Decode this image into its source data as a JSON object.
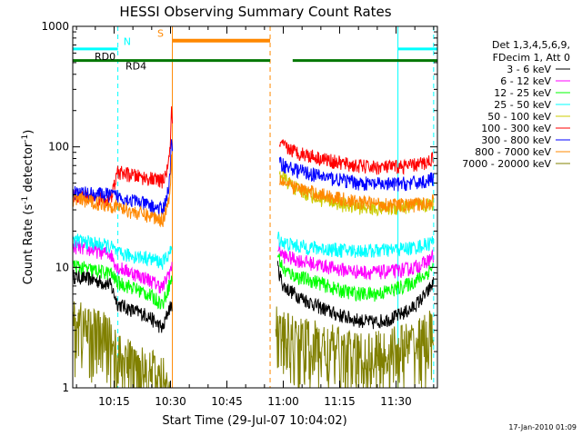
{
  "chart_data": {
    "type": "line",
    "title": "HESSI Observing Summary Count Rates",
    "xlabel": "Start Time (29-Jul-07 10:04:02)",
    "ylabel_main": "Count Rate (s",
    "ylabel_sup1": "-1",
    "ylabel_mid": " detector",
    "ylabel_sup2": "-1",
    "ylabel_end": ")",
    "y_scale": "log",
    "ylim": [
      1,
      1000
    ],
    "xlim_minutes": [
      0,
      97
    ],
    "x_ticks": [
      {
        "t": 11,
        "label": "10:15"
      },
      {
        "t": 26,
        "label": "10:30"
      },
      {
        "t": 41,
        "label": "10:45"
      },
      {
        "t": 56,
        "label": "11:00"
      },
      {
        "t": 71,
        "label": "11:15"
      },
      {
        "t": 86,
        "label": "11:30"
      }
    ],
    "y_ticks": [
      {
        "v": 1,
        "label": "1"
      },
      {
        "v": 10,
        "label": "10"
      },
      {
        "v": 100,
        "label": "100"
      },
      {
        "v": 1000,
        "label": "1000"
      }
    ],
    "legend": {
      "position": "top-right",
      "header1": "Det 1,3,4,5,6,9,",
      "header2": "FDecim 1, Att 0"
    },
    "series": [
      {
        "name": "3 - 6 keV",
        "color": "#000000",
        "seg1": [
          [
            0,
            8.5
          ],
          [
            5,
            8
          ],
          [
            10,
            7.2
          ],
          [
            12,
            5
          ],
          [
            16,
            4.4
          ],
          [
            20,
            4
          ],
          [
            22,
            3.5
          ],
          [
            24,
            3.1
          ],
          [
            25.5,
            4.5
          ],
          [
            26.5,
            5
          ]
        ],
        "seg2": [
          [
            54.5,
            10
          ],
          [
            56,
            7
          ],
          [
            60,
            5.8
          ],
          [
            65,
            4.8
          ],
          [
            70,
            4.1
          ],
          [
            75,
            3.7
          ],
          [
            80,
            3.5
          ],
          [
            85,
            3.8
          ],
          [
            90,
            4.5
          ],
          [
            94,
            6
          ],
          [
            96,
            7.5
          ]
        ]
      },
      {
        "name": "6 - 12 keV",
        "color": "#ff00ff",
        "seg1": [
          [
            0,
            15
          ],
          [
            5,
            14
          ],
          [
            10,
            13
          ],
          [
            12,
            10
          ],
          [
            16,
            9
          ],
          [
            20,
            8
          ],
          [
            24,
            6.8
          ],
          [
            25.5,
            9
          ],
          [
            26.5,
            10
          ]
        ],
        "seg2": [
          [
            54.5,
            15
          ],
          [
            56,
            12.5
          ],
          [
            60,
            11.5
          ],
          [
            65,
            10.6
          ],
          [
            70,
            9.8
          ],
          [
            75,
            9.3
          ],
          [
            80,
            9.1
          ],
          [
            85,
            9.3
          ],
          [
            90,
            9.8
          ],
          [
            94,
            11
          ],
          [
            96,
            12.5
          ]
        ]
      },
      {
        "name": "12 - 25 keV",
        "color": "#00ff00",
        "seg1": [
          [
            0,
            10.5
          ],
          [
            5,
            9.5
          ],
          [
            10,
            9
          ],
          [
            12,
            7.5
          ],
          [
            16,
            6.8
          ],
          [
            20,
            6
          ],
          [
            24,
            5
          ],
          [
            25.5,
            7
          ],
          [
            26.5,
            8
          ]
        ],
        "seg2": [
          [
            54.5,
            13
          ],
          [
            56,
            9.5
          ],
          [
            60,
            8.3
          ],
          [
            65,
            7.6
          ],
          [
            70,
            6.6
          ],
          [
            75,
            6.1
          ],
          [
            80,
            6
          ],
          [
            85,
            6.5
          ],
          [
            90,
            7.4
          ],
          [
            94,
            8.8
          ],
          [
            96,
            10.5
          ]
        ]
      },
      {
        "name": "25 - 50 keV",
        "color": "#00ffff",
        "seg1": [
          [
            0,
            17
          ],
          [
            5,
            16
          ],
          [
            10,
            15
          ],
          [
            12,
            13
          ],
          [
            16,
            12.5
          ],
          [
            20,
            12
          ],
          [
            24,
            11
          ],
          [
            25.5,
            13
          ],
          [
            26.5,
            14
          ]
        ],
        "seg2": [
          [
            54.5,
            18
          ],
          [
            56,
            16
          ],
          [
            60,
            15
          ],
          [
            65,
            14.5
          ],
          [
            70,
            14
          ],
          [
            75,
            13.8
          ],
          [
            80,
            13.8
          ],
          [
            85,
            14
          ],
          [
            90,
            14.5
          ],
          [
            94,
            15.5
          ],
          [
            96,
            16.5
          ]
        ]
      },
      {
        "name": "50 - 100 keV",
        "color": "#cccc00",
        "seg1": [],
        "seg2": [
          [
            55,
            62
          ],
          [
            57,
            52
          ],
          [
            60,
            44
          ],
          [
            63,
            40
          ],
          [
            66,
            37
          ],
          [
            70,
            34
          ],
          [
            75,
            32
          ],
          [
            80,
            31
          ],
          [
            85,
            31
          ],
          [
            90,
            32
          ],
          [
            94,
            33
          ],
          [
            96,
            34
          ]
        ]
      },
      {
        "name": "100 - 300 keV",
        "color": "#ff0000",
        "seg1": [
          [
            0,
            40
          ],
          [
            5,
            38
          ],
          [
            10,
            36
          ],
          [
            12,
            62
          ],
          [
            16,
            58
          ],
          [
            20,
            55
          ],
          [
            24,
            52
          ],
          [
            25.5,
            70
          ],
          [
            26,
            120
          ],
          [
            26.3,
            210
          ],
          [
            26.6,
            120
          ]
        ],
        "seg2": [
          [
            55,
            105
          ],
          [
            57,
            98
          ],
          [
            60,
            90
          ],
          [
            65,
            82
          ],
          [
            70,
            75
          ],
          [
            75,
            70
          ],
          [
            80,
            68
          ],
          [
            85,
            68
          ],
          [
            90,
            70
          ],
          [
            94,
            74
          ],
          [
            96,
            82
          ]
        ]
      },
      {
        "name": "300 - 800 keV",
        "color": "#0000ff",
        "seg1": [
          [
            0,
            42
          ],
          [
            5,
            41
          ],
          [
            10,
            40
          ],
          [
            12,
            39
          ],
          [
            16,
            36
          ],
          [
            20,
            33
          ],
          [
            24,
            30
          ],
          [
            25.5,
            45
          ],
          [
            26,
            70
          ],
          [
            26.3,
            120
          ],
          [
            26.6,
            75
          ]
        ],
        "seg2": [
          [
            55,
            75
          ],
          [
            57,
            68
          ],
          [
            60,
            64
          ],
          [
            65,
            58
          ],
          [
            70,
            54
          ],
          [
            75,
            51
          ],
          [
            80,
            49
          ],
          [
            85,
            49
          ],
          [
            90,
            50
          ],
          [
            94,
            52
          ],
          [
            96,
            55
          ]
        ]
      },
      {
        "name": "800 - 7000 keV",
        "color": "#ff8800",
        "seg1": [
          [
            0,
            37
          ],
          [
            5,
            35
          ],
          [
            10,
            33
          ],
          [
            12,
            32
          ],
          [
            16,
            29
          ],
          [
            20,
            27
          ],
          [
            24,
            25
          ],
          [
            25.5,
            36
          ],
          [
            26,
            50
          ],
          [
            26.3,
            85
          ],
          [
            26.6,
            55
          ]
        ],
        "seg2": [
          [
            55,
            55
          ],
          [
            57,
            49
          ],
          [
            60,
            45
          ],
          [
            65,
            41
          ],
          [
            70,
            38
          ],
          [
            75,
            35
          ],
          [
            80,
            34
          ],
          [
            85,
            33
          ],
          [
            90,
            33
          ],
          [
            94,
            34
          ],
          [
            96,
            36
          ]
        ]
      },
      {
        "name": "7000 - 20000 keV",
        "color": "#808000",
        "seg1": [
          [
            0,
            3.5
          ],
          [
            3,
            3.2
          ],
          [
            6,
            2.8
          ],
          [
            10,
            2.5
          ],
          [
            12,
            1.7
          ],
          [
            16,
            1.5
          ],
          [
            20,
            1.4
          ],
          [
            22,
            1.2
          ],
          [
            24,
            1.1
          ],
          [
            26,
            1.05
          ]
        ],
        "seg2": [
          [
            54,
            3
          ],
          [
            56,
            2.6
          ],
          [
            60,
            2.4
          ],
          [
            65,
            2.2
          ],
          [
            70,
            2
          ],
          [
            75,
            1.8
          ],
          [
            80,
            1.8
          ],
          [
            85,
            2
          ],
          [
            90,
            2.2
          ],
          [
            94,
            2.5
          ],
          [
            96,
            3
          ]
        ]
      }
    ],
    "annotations": {
      "rd0": {
        "label": "RD0",
        "t0": 0,
        "t1": 12,
        "y": 650,
        "color": "#00ffff"
      },
      "rd0_right": {
        "t0": 86.5,
        "t1": 97,
        "y": 650,
        "color": "#00ffff"
      },
      "rd4": {
        "label": "RD4",
        "t0": 0,
        "t1": 52.5,
        "t2": 58.5,
        "t3": 97,
        "y": 520,
        "color": "#007700"
      },
      "n": {
        "label": "N",
        "t": 13.5,
        "y": 700,
        "color": "#00ffff"
      },
      "s": {
        "label": "S",
        "t": 22.5,
        "y": 820,
        "color": "#ff8800"
      },
      "saa_bar": {
        "t0": 26.5,
        "t1": 52.5,
        "y": 760,
        "color": "#ff8800"
      },
      "vlines_solid_cyan": [
        0,
        86.5
      ],
      "vlines_dashed_cyan": [
        12,
        96
      ],
      "vlines_solid_orange": [
        26.5
      ],
      "vlines_dashed_orange": [
        52.5
      ]
    }
  },
  "footer": {
    "timestamp": "17-Jan-2010 01:09"
  }
}
